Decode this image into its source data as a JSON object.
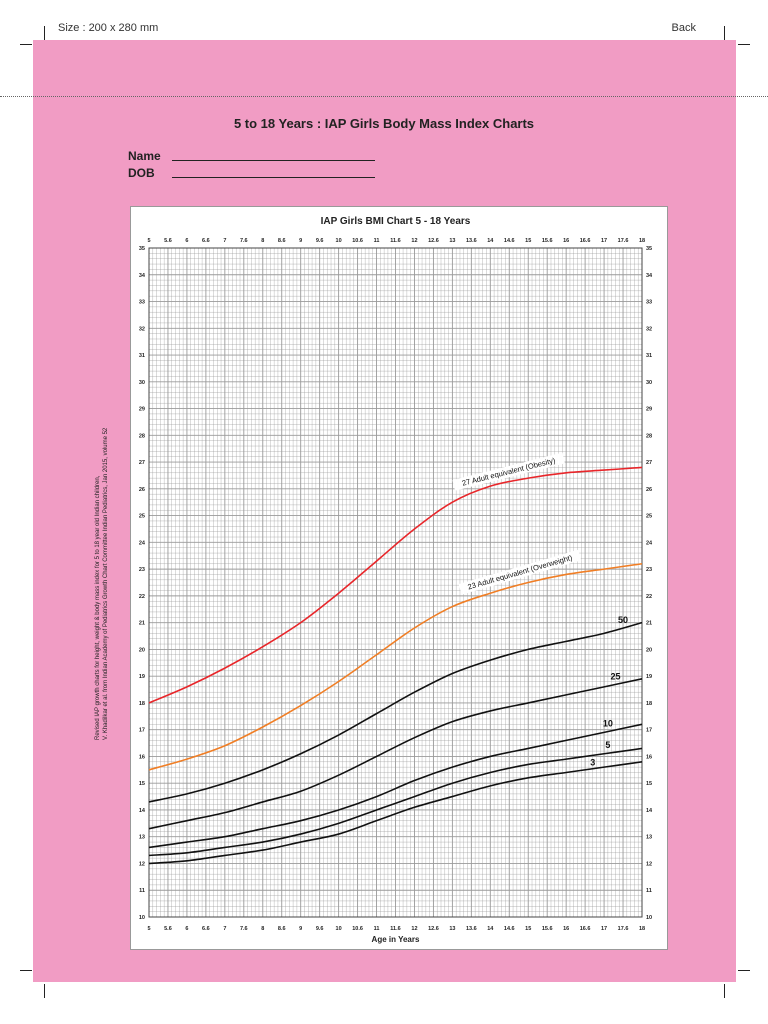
{
  "topbar": {
    "size_label": "Size : 200 x 280 mm",
    "back_label": "Back"
  },
  "document": {
    "title": "5 to 18 Years : IAP Girls Body Mass Index Charts",
    "name_label": "Name",
    "dob_label": "DOB"
  },
  "side_note": {
    "line1": "Revised IAP growth charts for height, weight & body mass index for 5 to 18 year old Indian children,",
    "line2": "V. Khadilkar et al. from Indian Academy of Pediatrics Growth Chart Committee Indian Pediatrics, Jan 2015, volume 52"
  },
  "colors": {
    "page_bg": "#f19cc4",
    "obesity": "#e8262a",
    "overweight": "#f07e25",
    "percentile": "#111111",
    "grid": "#9a9a9a"
  },
  "chart_data": {
    "type": "line",
    "title": "IAP Girls BMI Chart 5 - 18 Years",
    "xlabel": "Age in Years",
    "ylabel": "",
    "xlim": [
      5,
      18
    ],
    "ylim": [
      10,
      35
    ],
    "x_ticks": [
      "5",
      "5.6",
      "6",
      "6.6",
      "7",
      "7.6",
      "8",
      "8.6",
      "9",
      "9.6",
      "10",
      "10.6",
      "11",
      "11.6",
      "12",
      "12.6",
      "13",
      "13.6",
      "14",
      "14.6",
      "15",
      "15.6",
      "16",
      "16.6",
      "17",
      "17.6",
      "18"
    ],
    "y_ticks": [
      "10",
      "11",
      "12",
      "13",
      "14",
      "15",
      "16",
      "17",
      "18",
      "19",
      "20",
      "21",
      "22",
      "23",
      "24",
      "25",
      "26",
      "27",
      "28",
      "29",
      "30",
      "31",
      "32",
      "33",
      "34",
      "35"
    ],
    "grid": true,
    "x": [
      5,
      6,
      7,
      8,
      9,
      10,
      11,
      12,
      13,
      14,
      15,
      16,
      17,
      18
    ],
    "series": [
      {
        "name": "27 Adult equivalent (Obesity)",
        "color": "#e8262a",
        "values": [
          18.0,
          18.6,
          19.3,
          20.1,
          21.0,
          22.1,
          23.3,
          24.5,
          25.5,
          26.1,
          26.4,
          26.6,
          26.7,
          26.8
        ]
      },
      {
        "name": "23 Adult equivalent (Overweight)",
        "color": "#f07e25",
        "values": [
          15.5,
          15.9,
          16.4,
          17.1,
          17.9,
          18.8,
          19.8,
          20.8,
          21.6,
          22.1,
          22.5,
          22.8,
          23.0,
          23.2
        ]
      },
      {
        "name": "50",
        "color": "#111111",
        "values": [
          14.3,
          14.6,
          15.0,
          15.5,
          16.1,
          16.8,
          17.6,
          18.4,
          19.1,
          19.6,
          20.0,
          20.3,
          20.6,
          21.0
        ]
      },
      {
        "name": "25",
        "color": "#111111",
        "values": [
          13.3,
          13.6,
          13.9,
          14.3,
          14.7,
          15.3,
          16.0,
          16.7,
          17.3,
          17.7,
          18.0,
          18.3,
          18.6,
          18.9
        ]
      },
      {
        "name": "10",
        "color": "#111111",
        "values": [
          12.6,
          12.8,
          13.0,
          13.3,
          13.6,
          14.0,
          14.5,
          15.1,
          15.6,
          16.0,
          16.3,
          16.6,
          16.9,
          17.2
        ]
      },
      {
        "name": "5",
        "color": "#111111",
        "values": [
          12.3,
          12.4,
          12.6,
          12.8,
          13.1,
          13.5,
          14.0,
          14.5,
          15.0,
          15.4,
          15.7,
          15.9,
          16.1,
          16.3
        ]
      },
      {
        "name": "3",
        "color": "#111111",
        "values": [
          12.0,
          12.1,
          12.3,
          12.5,
          12.8,
          13.1,
          13.6,
          14.1,
          14.5,
          14.9,
          15.2,
          15.4,
          15.6,
          15.8
        ]
      }
    ]
  }
}
